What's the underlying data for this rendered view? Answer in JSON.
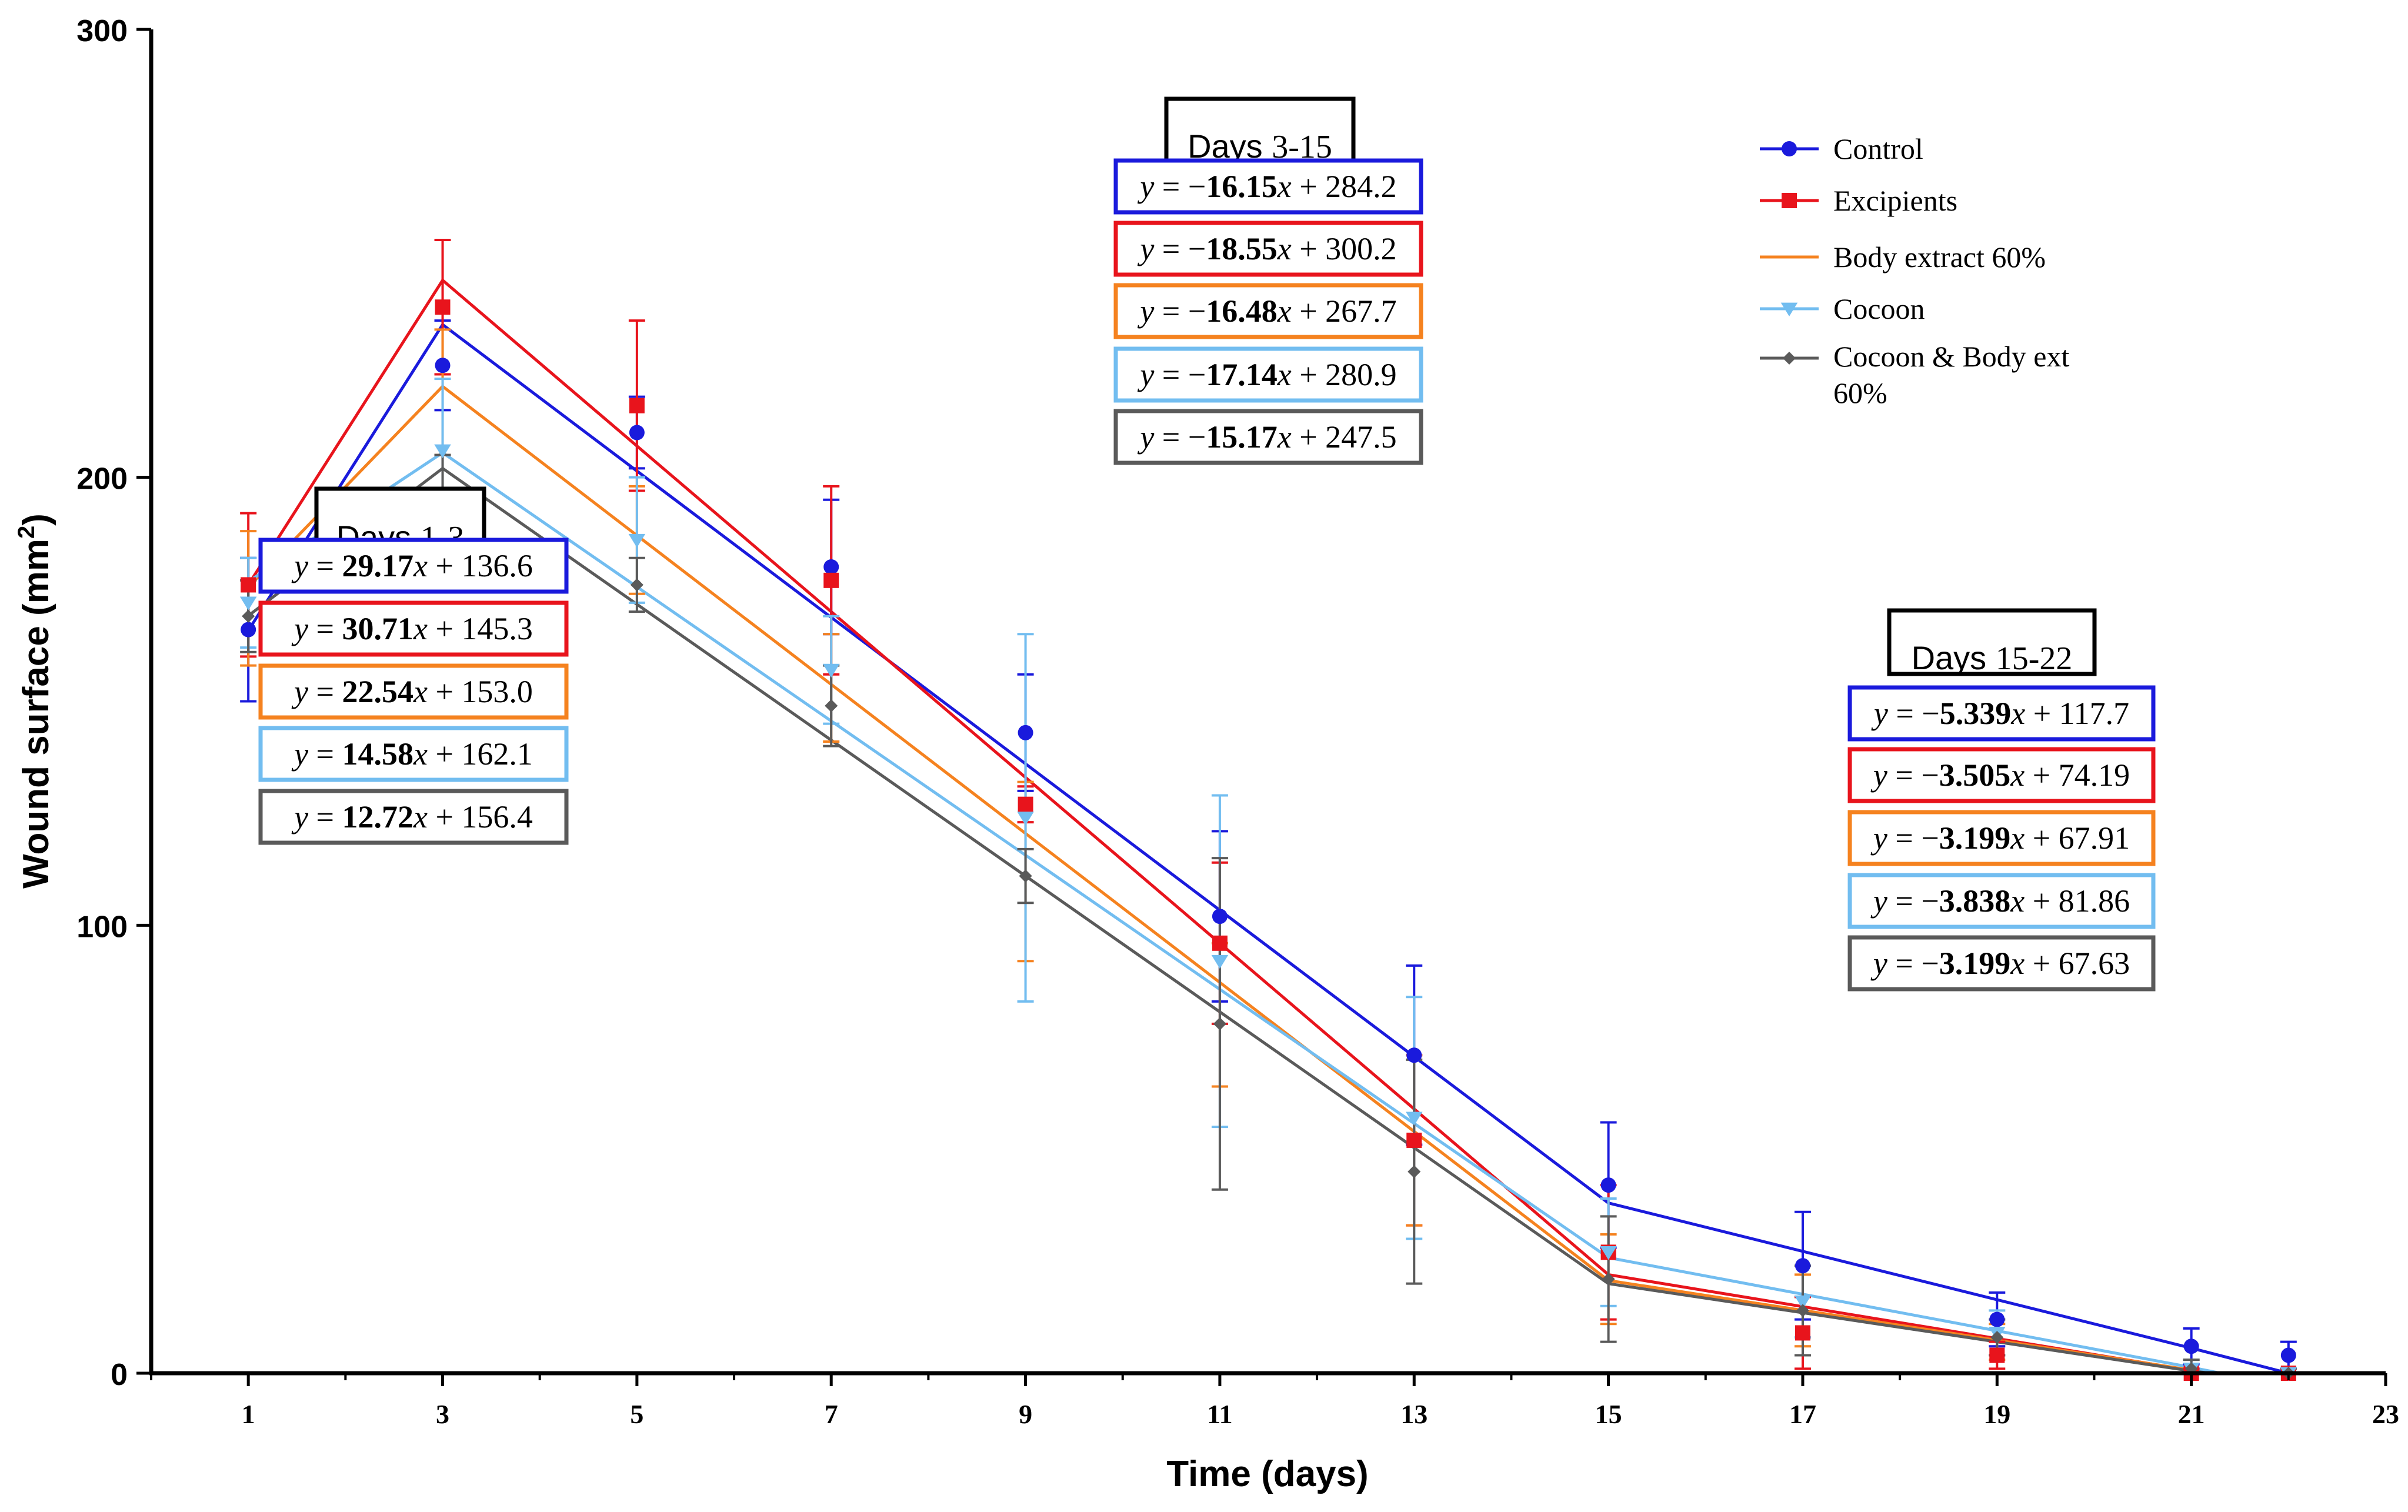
{
  "chart_data": {
    "type": "line",
    "xlabel": "Time (days)",
    "ylabel_main": "Wound surface (mm",
    "ylabel_sup": "2",
    "ylabel_close": ")",
    "xlim": [
      0,
      23
    ],
    "ylim": [
      0,
      300
    ],
    "xticks": [
      1,
      3,
      5,
      7,
      9,
      11,
      13,
      15,
      17,
      19,
      21,
      23
    ],
    "yticks": [
      0,
      100,
      200,
      300
    ],
    "grid": false,
    "legend_position": "top-right",
    "series": [
      {
        "name": "Control",
        "color": "#1a1adc",
        "marker": "circle",
        "x": [
          1,
          3,
          5,
          7,
          9,
          11,
          13,
          15,
          17,
          19,
          21,
          22
        ],
        "values": [
          166,
          225,
          210,
          180,
          143,
          102,
          71,
          42,
          24,
          12,
          6,
          4
        ],
        "error": [
          16,
          10,
          8,
          15,
          13,
          19,
          20,
          14,
          12,
          6,
          4,
          3
        ],
        "fit": [
          [
            1,
            165.8
          ],
          [
            3,
            234.1
          ],
          [
            15,
            38.0
          ],
          [
            21,
            5.6
          ],
          [
            22,
            0
          ]
        ]
      },
      {
        "name": "Excipients",
        "color": "#e8141c",
        "marker": "square",
        "x": [
          1,
          3,
          5,
          7,
          9,
          11,
          13,
          15,
          17,
          19,
          21,
          22
        ],
        "values": [
          176,
          238,
          216,
          177,
          127,
          96,
          52,
          27,
          9,
          4,
          0,
          0
        ],
        "error": [
          16,
          15,
          19,
          21,
          4,
          18,
          19,
          15,
          8,
          3,
          1,
          1
        ],
        "fit": [
          [
            1,
            176.0
          ],
          [
            3,
            244.0
          ],
          [
            15,
            22.0
          ],
          [
            21,
            0.6
          ],
          [
            21.2,
            0
          ]
        ]
      },
      {
        "name": "Body extract 60%",
        "color": "#f5821f",
        "marker": "none",
        "x": [
          1,
          3,
          5,
          7,
          9,
          11,
          13,
          15,
          17,
          19,
          21,
          22
        ],
        "values": [
          173,
          219,
          186,
          153,
          112,
          80,
          52,
          21,
          14,
          7,
          1,
          0
        ],
        "error": [
          15,
          14,
          12,
          12,
          20,
          16,
          19,
          10,
          8,
          4,
          2,
          1
        ],
        "fit": [
          [
            1,
            175.5
          ],
          [
            3,
            220.3
          ],
          [
            15,
            20.7
          ],
          [
            21,
            0.7
          ],
          [
            21.2,
            0
          ]
        ]
      },
      {
        "name": "Cocoon",
        "color": "#72bdf0",
        "marker": "triangle-down",
        "x": [
          1,
          3,
          5,
          7,
          9,
          11,
          13,
          15,
          17,
          19,
          21,
          22
        ],
        "values": [
          172,
          206,
          186,
          157,
          124,
          92,
          57,
          27,
          16,
          9,
          1,
          0
        ],
        "error": [
          10,
          16,
          14,
          12,
          41,
          37,
          27,
          12,
          8,
          5,
          2,
          1
        ],
        "fit": [
          [
            1,
            176.7
          ],
          [
            3,
            205.5
          ],
          [
            15,
            25.8
          ],
          [
            21,
            1.3
          ],
          [
            21.3,
            0
          ]
        ]
      },
      {
        "name": "Cocoon & Body ext 60%",
        "color": "#5a5a5a",
        "marker": "diamond",
        "x": [
          1,
          3,
          5,
          7,
          9,
          11,
          13,
          15,
          17,
          19,
          21,
          22
        ],
        "values": [
          169,
          195,
          176,
          149,
          111,
          78,
          45,
          21,
          14,
          8,
          1,
          0
        ],
        "error": [
          8,
          10,
          6,
          9,
          6,
          37,
          25,
          14,
          10,
          4,
          2,
          1
        ],
        "fit": [
          [
            1,
            169.1
          ],
          [
            3,
            202.0
          ],
          [
            15,
            20.0
          ],
          [
            21,
            0.5
          ],
          [
            21.2,
            0
          ]
        ]
      }
    ],
    "annotations": [
      {
        "title": "Days 1-3",
        "equations": [
          {
            "slope": "29.17",
            "intercept": "136.6",
            "neg": false,
            "color": "#1a1adc"
          },
          {
            "slope": "30.71",
            "intercept": "145.3",
            "neg": false,
            "color": "#e8141c"
          },
          {
            "slope": "22.54",
            "intercept": "153.0",
            "neg": false,
            "color": "#f5821f"
          },
          {
            "slope": "14.58",
            "intercept": "162.1",
            "neg": false,
            "color": "#72bdf0"
          },
          {
            "slope": "12.72",
            "intercept": "156.4",
            "neg": false,
            "color": "#5a5a5a"
          }
        ]
      },
      {
        "title": "Days 3-15",
        "equations": [
          {
            "slope": "16.15",
            "intercept": "284.2",
            "neg": true,
            "color": "#1a1adc"
          },
          {
            "slope": "18.55",
            "intercept": "300.2",
            "neg": true,
            "color": "#e8141c"
          },
          {
            "slope": "16.48",
            "intercept": "267.7",
            "neg": true,
            "color": "#f5821f"
          },
          {
            "slope": "17.14",
            "intercept": "280.9",
            "neg": true,
            "color": "#72bdf0"
          },
          {
            "slope": "15.17",
            "intercept": "247.5",
            "neg": true,
            "color": "#5a5a5a"
          }
        ]
      },
      {
        "title": "Days 15-22",
        "equations": [
          {
            "slope": "5.339",
            "intercept": "117.7",
            "neg": true,
            "color": "#1a1adc"
          },
          {
            "slope": "3.505",
            "intercept": "74.19",
            "neg": true,
            "color": "#e8141c"
          },
          {
            "slope": "3.199",
            "intercept": "67.91",
            "neg": true,
            "color": "#f5821f"
          },
          {
            "slope": "3.838",
            "intercept": "81.86",
            "neg": true,
            "color": "#72bdf0"
          },
          {
            "slope": "3.199",
            "intercept": "67.63",
            "neg": true,
            "color": "#5a5a5a"
          }
        ]
      }
    ]
  }
}
